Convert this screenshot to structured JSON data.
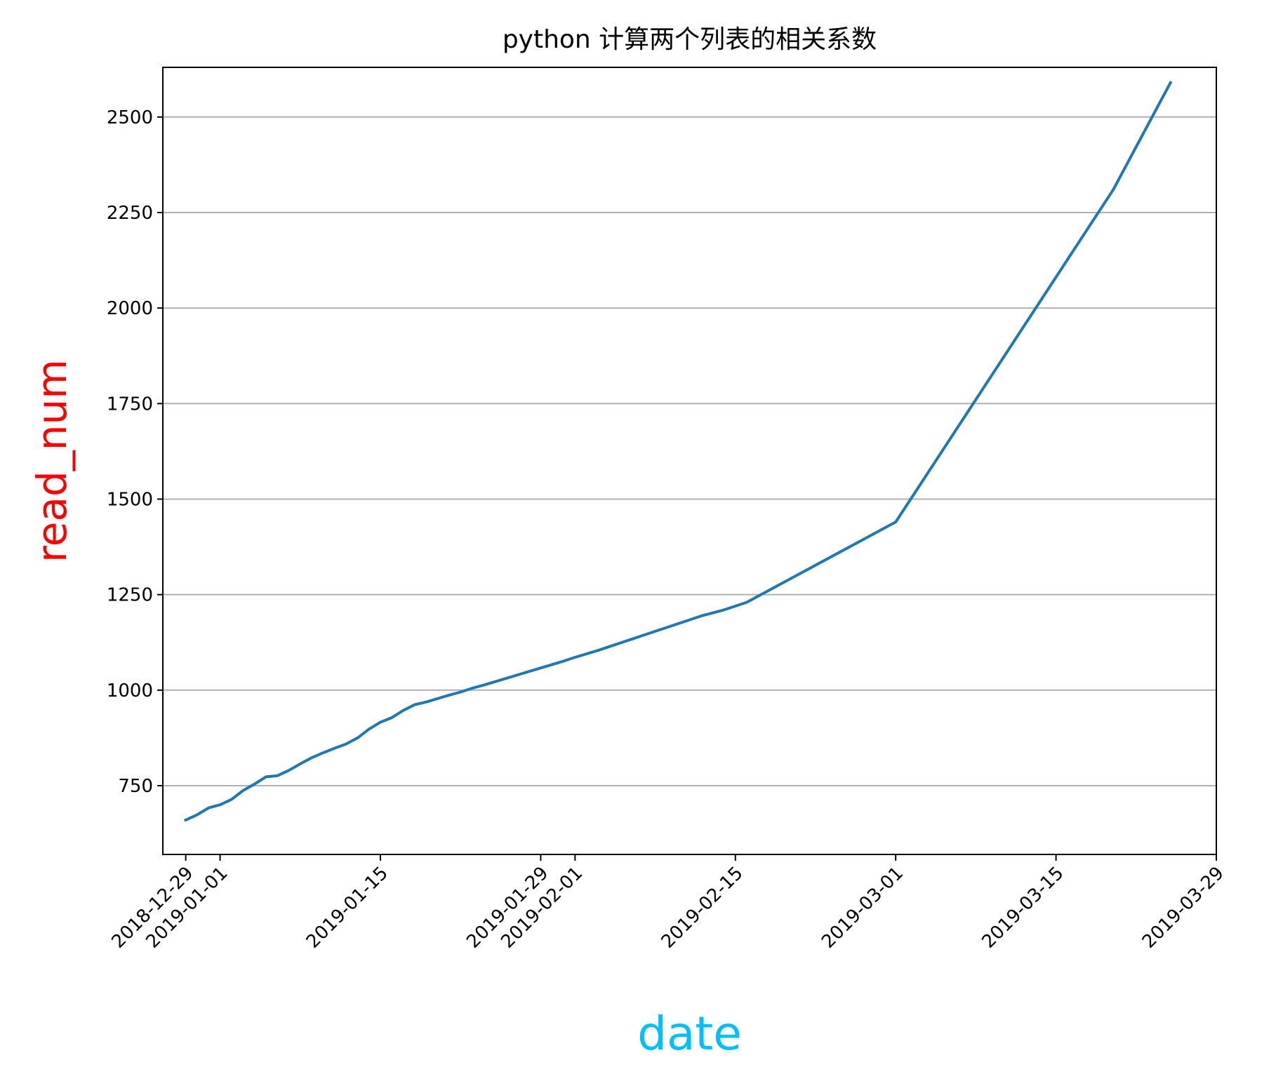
{
  "chart_data": {
    "type": "line",
    "title": "python 计算两个列表的相关系数",
    "xlabel": "date",
    "ylabel": "read_num",
    "xlabel_color": "#00bfff",
    "ylabel_color": "#ff0000",
    "line_color": "#1f77b4",
    "grid": "horizontal",
    "xlim": [
      "2018-12-27",
      "2019-03-29"
    ],
    "ylim": [
      570,
      2630
    ],
    "x_ticks": [
      "2018-12-29",
      "2019-01-01",
      "2019-01-15",
      "2019-01-29",
      "2019-02-01",
      "2019-02-15",
      "2019-03-01",
      "2019-03-15",
      "2019-03-29"
    ],
    "y_ticks": [
      750,
      1000,
      1250,
      1500,
      1750,
      2000,
      2250,
      2500
    ],
    "series": [
      {
        "x": [
          "2018-12-29",
          "2018-12-30",
          "2018-12-31",
          "2019-01-01",
          "2019-01-02",
          "2019-01-03",
          "2019-01-04",
          "2019-01-05",
          "2019-01-06",
          "2019-01-07",
          "2019-01-08",
          "2019-01-09",
          "2019-01-10",
          "2019-01-11",
          "2019-01-12",
          "2019-01-13",
          "2019-01-14",
          "2019-01-15",
          "2019-01-16",
          "2019-01-17",
          "2019-01-18",
          "2019-01-19",
          "2019-01-20",
          "2019-01-21",
          "2019-01-22",
          "2019-01-23",
          "2019-01-24",
          "2019-01-25",
          "2019-01-26",
          "2019-01-27",
          "2019-01-28",
          "2019-01-29",
          "2019-01-30",
          "2019-01-31",
          "2019-02-01",
          "2019-02-02",
          "2019-02-03",
          "2019-02-04",
          "2019-02-05",
          "2019-02-06",
          "2019-02-07",
          "2019-02-08",
          "2019-02-09",
          "2019-02-10",
          "2019-02-11",
          "2019-02-12",
          "2019-02-13",
          "2019-02-14",
          "2019-02-15",
          "2019-02-16",
          "2019-03-01",
          "2019-03-20",
          "2019-03-25"
        ],
        "y": [
          660,
          674,
          692,
          700,
          714,
          737,
          754,
          773,
          776,
          790,
          807,
          823,
          836,
          848,
          859,
          875,
          898,
          916,
          928,
          947,
          962,
          969,
          978,
          987,
          995,
          1005,
          1013,
          1022,
          1031,
          1040,
          1049,
          1058,
          1067,
          1076,
          1086,
          1095,
          1104,
          1114,
          1124,
          1134,
          1144,
          1154,
          1164,
          1174,
          1184,
          1194,
          1202,
          1210,
          1220,
          1230,
          1440,
          2310,
          2590
        ]
      }
    ]
  }
}
